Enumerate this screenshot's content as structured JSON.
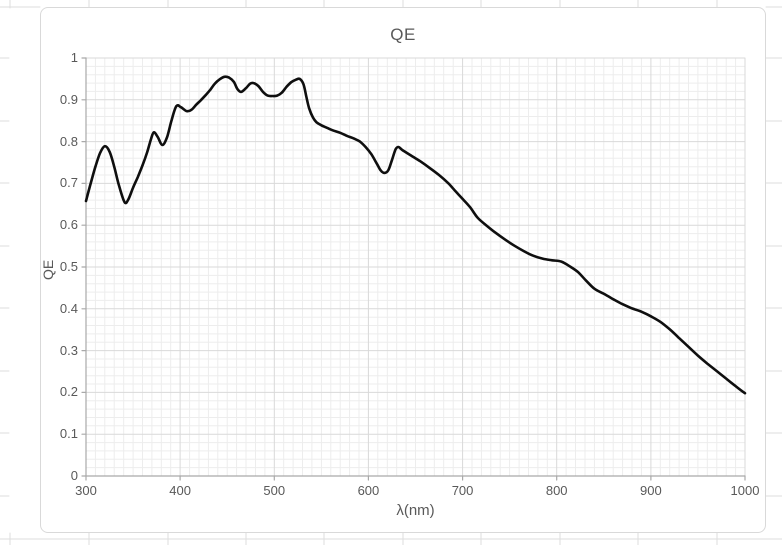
{
  "chart_data": {
    "type": "line",
    "title": "QE",
    "xlabel": "λ(nm)",
    "ylabel": "QE",
    "xlim": [
      300,
      1000
    ],
    "ylim": [
      0,
      1
    ],
    "x_major_step": 100,
    "x_minor_step": 10,
    "y_major_step": 0.1,
    "y_minor_step": 0.02,
    "x_tick_labels": [
      "300",
      "400",
      "500",
      "600",
      "700",
      "800",
      "900",
      "1000"
    ],
    "y_tick_labels": [
      "0",
      "0.1",
      "0.2",
      "0.3",
      "0.4",
      "0.5",
      "0.6",
      "0.7",
      "0.8",
      "0.9",
      "1"
    ],
    "grid": "major and minor gridlines on both axes",
    "legend": false,
    "series": [
      {
        "name": "QE",
        "color": "#0f0f0f",
        "points": [
          [
            300,
            0.658
          ],
          [
            305,
            0.7
          ],
          [
            310,
            0.74
          ],
          [
            315,
            0.773
          ],
          [
            320,
            0.789
          ],
          [
            325,
            0.776
          ],
          [
            330,
            0.74
          ],
          [
            335,
            0.695
          ],
          [
            341,
            0.655
          ],
          [
            345,
            0.662
          ],
          [
            350,
            0.69
          ],
          [
            355,
            0.715
          ],
          [
            360,
            0.743
          ],
          [
            365,
            0.775
          ],
          [
            369,
            0.806
          ],
          [
            372,
            0.822
          ],
          [
            376,
            0.812
          ],
          [
            381,
            0.792
          ],
          [
            386,
            0.81
          ],
          [
            391,
            0.852
          ],
          [
            396,
            0.885
          ],
          [
            401,
            0.882
          ],
          [
            407,
            0.873
          ],
          [
            412,
            0.876
          ],
          [
            417,
            0.888
          ],
          [
            422,
            0.899
          ],
          [
            427,
            0.911
          ],
          [
            432,
            0.924
          ],
          [
            437,
            0.939
          ],
          [
            442,
            0.949
          ],
          [
            447,
            0.955
          ],
          [
            452,
            0.953
          ],
          [
            457,
            0.943
          ],
          [
            461,
            0.925
          ],
          [
            465,
            0.919
          ],
          [
            470,
            0.928
          ],
          [
            474,
            0.938
          ],
          [
            478,
            0.94
          ],
          [
            483,
            0.933
          ],
          [
            488,
            0.919
          ],
          [
            493,
            0.91
          ],
          [
            498,
            0.909
          ],
          [
            503,
            0.91
          ],
          [
            508,
            0.917
          ],
          [
            513,
            0.931
          ],
          [
            518,
            0.942
          ],
          [
            523,
            0.948
          ],
          [
            527,
            0.95
          ],
          [
            531,
            0.937
          ],
          [
            534,
            0.908
          ],
          [
            537,
            0.88
          ],
          [
            541,
            0.858
          ],
          [
            545,
            0.846
          ],
          [
            550,
            0.839
          ],
          [
            556,
            0.833
          ],
          [
            562,
            0.827
          ],
          [
            570,
            0.821
          ],
          [
            578,
            0.813
          ],
          [
            585,
            0.807
          ],
          [
            591,
            0.8
          ],
          [
            597,
            0.787
          ],
          [
            603,
            0.77
          ],
          [
            609,
            0.747
          ],
          [
            613,
            0.731
          ],
          [
            617,
            0.725
          ],
          [
            621,
            0.731
          ],
          [
            625,
            0.756
          ],
          [
            629,
            0.782
          ],
          [
            632,
            0.787
          ],
          [
            636,
            0.78
          ],
          [
            645,
            0.767
          ],
          [
            655,
            0.753
          ],
          [
            665,
            0.737
          ],
          [
            675,
            0.72
          ],
          [
            685,
            0.7
          ],
          [
            693,
            0.68
          ],
          [
            700,
            0.663
          ],
          [
            708,
            0.643
          ],
          [
            716,
            0.618
          ],
          [
            725,
            0.6
          ],
          [
            735,
            0.582
          ],
          [
            745,
            0.566
          ],
          [
            755,
            0.551
          ],
          [
            765,
            0.538
          ],
          [
            775,
            0.527
          ],
          [
            785,
            0.52
          ],
          [
            795,
            0.516
          ],
          [
            805,
            0.513
          ],
          [
            815,
            0.5
          ],
          [
            823,
            0.487
          ],
          [
            831,
            0.468
          ],
          [
            840,
            0.448
          ],
          [
            850,
            0.436
          ],
          [
            860,
            0.423
          ],
          [
            870,
            0.411
          ],
          [
            880,
            0.401
          ],
          [
            890,
            0.393
          ],
          [
            900,
            0.382
          ],
          [
            910,
            0.369
          ],
          [
            920,
            0.351
          ],
          [
            930,
            0.33
          ],
          [
            940,
            0.309
          ],
          [
            950,
            0.288
          ],
          [
            960,
            0.269
          ],
          [
            970,
            0.251
          ],
          [
            980,
            0.233
          ],
          [
            990,
            0.215
          ],
          [
            1000,
            0.198
          ]
        ]
      }
    ]
  },
  "style": {
    "colors": {
      "line": "#0f0f0f",
      "major_grid": "#d9d9d9",
      "minor_grid": "#ededed",
      "axis": "#a9a9a9",
      "text": "#595959",
      "chart_border": "#d9d9d9",
      "sheet_grid": "#dedede"
    }
  }
}
